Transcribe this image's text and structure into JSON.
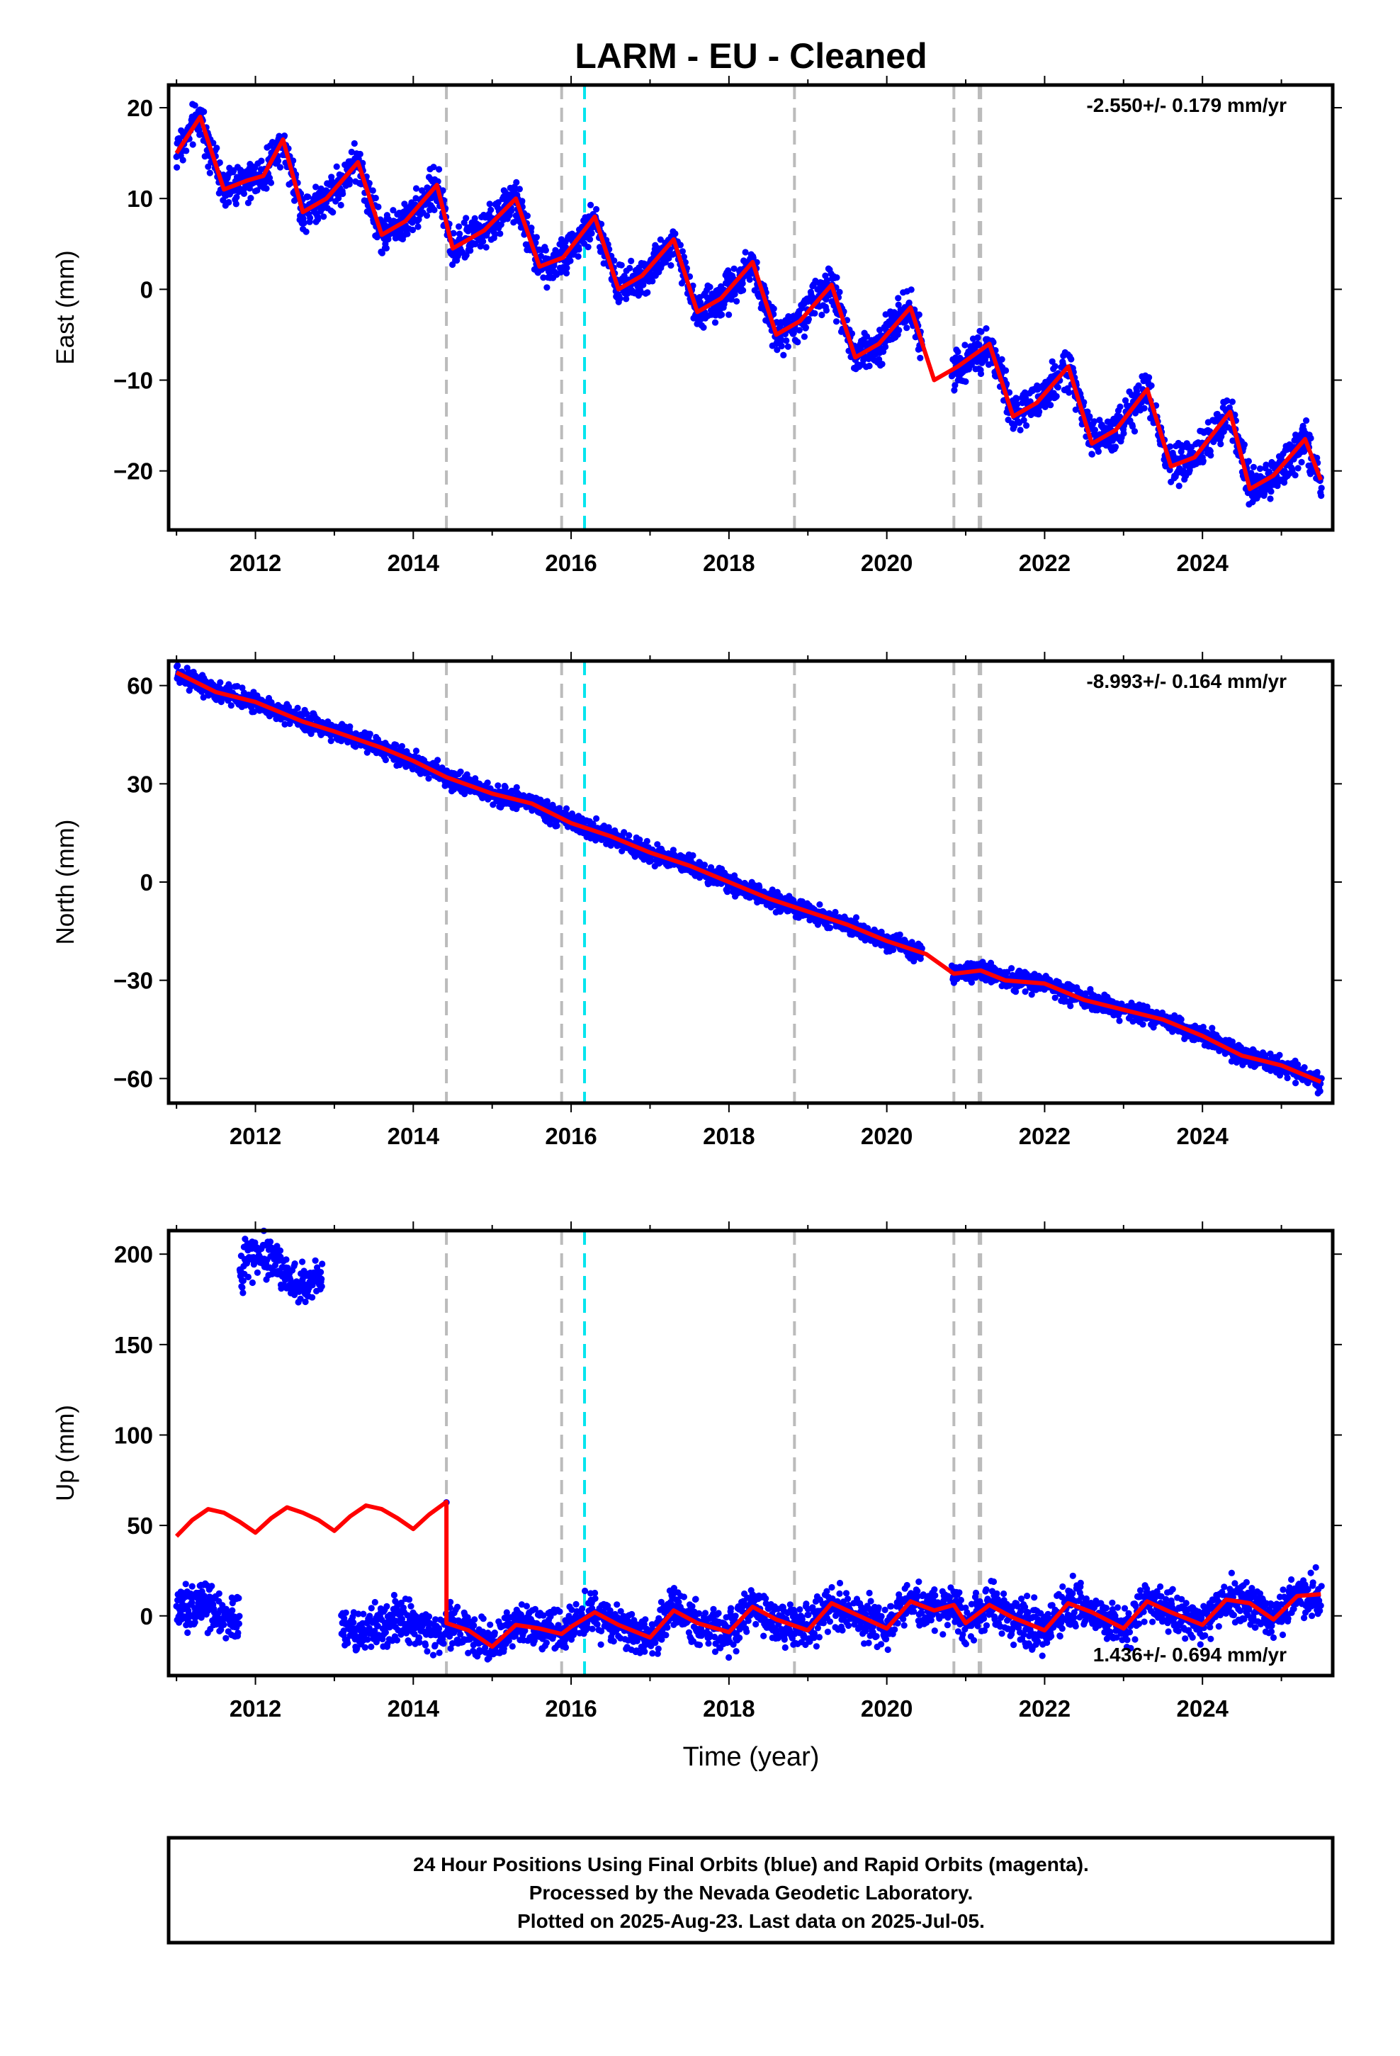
{
  "title": "LARM  - EU - Cleaned",
  "xlabel": "Time (year)",
  "footer": {
    "line1": "24 Hour Positions Using Final Orbits (blue) and Rapid Orbits (magenta).",
    "line2": "Processed by the Nevada Geodetic Laboratory.",
    "line3": "Plotted on 2025-Aug-23. Last data on 2025-Jul-05."
  },
  "colors": {
    "final_orbits": "#0000ff",
    "model": "#ff0000",
    "event_gray": "#bbbbbb",
    "event_cyan": "#00e5ee"
  },
  "chart_data": [
    {
      "type": "scatter",
      "panel": "east",
      "ylabel": "East (mm)",
      "rate_label": "-2.550+/- 0.179 mm/yr",
      "xlim": [
        2010.9,
        2025.65
      ],
      "ylim": [
        -26.5,
        22.5
      ],
      "xticks": [
        "2012",
        "2014",
        "2016",
        "2018",
        "2020",
        "2022",
        "2024"
      ],
      "yticks": [
        "−20",
        "−10",
        "0",
        "10",
        "20"
      ],
      "ytick_values": [
        -20,
        -10,
        0,
        10,
        20
      ],
      "grid": false,
      "gray_event_lines": [
        2014.42,
        2015.88,
        2018.83,
        2020.85,
        2021.17,
        2021.19
      ],
      "cyan_event_lines": [
        2016.17
      ],
      "series": [
        {
          "x": [
            2011.0,
            2011.3,
            2011.6,
            2011.9,
            2012.1,
            2012.35,
            2012.6,
            2012.9,
            2013.3,
            2013.6,
            2013.9,
            2014.3,
            2014.5,
            2014.9,
            2015.3,
            2015.6,
            2015.9,
            2016.3,
            2016.6,
            2016.9,
            2017.3,
            2017.6,
            2017.9,
            2018.3,
            2018.6,
            2018.9,
            2019.3,
            2019.6,
            2019.9,
            2020.3,
            2020.6,
            2020.9,
            2021.3,
            2021.6,
            2021.9,
            2022.3,
            2022.6,
            2022.9,
            2023.3,
            2023.6,
            2023.9,
            2024.35,
            2024.6,
            2024.9,
            2025.3,
            2025.5
          ],
          "y": [
            15.0,
            19.0,
            11.0,
            12.0,
            12.5,
            16.5,
            8.5,
            10.0,
            14.0,
            6.0,
            7.5,
            11.5,
            4.5,
            6.5,
            10.0,
            2.5,
            3.5,
            8.0,
            0.0,
            1.5,
            5.5,
            -2.5,
            -1.0,
            3.0,
            -5.0,
            -3.5,
            0.5,
            -7.5,
            -6.0,
            -2.0,
            -10.0,
            -8.5,
            -6.0,
            -14.0,
            -12.5,
            -8.5,
            -17.0,
            -15.5,
            -11.0,
            -19.5,
            -18.5,
            -13.5,
            -22.0,
            -20.5,
            -16.5,
            -21.0
          ]
        }
      ]
    },
    {
      "type": "scatter",
      "panel": "north",
      "ylabel": "North (mm)",
      "rate_label": "-8.993+/- 0.164 mm/yr",
      "xlim": [
        2010.9,
        2025.65
      ],
      "ylim": [
        -67.5,
        67.5
      ],
      "xticks": [
        "2012",
        "2014",
        "2016",
        "2018",
        "2020",
        "2022",
        "2024"
      ],
      "yticks": [
        "−60",
        "−30",
        "0",
        "30",
        "60"
      ],
      "ytick_values": [
        -60,
        -30,
        0,
        30,
        60
      ],
      "grid": false,
      "gray_event_lines": [
        2014.42,
        2015.88,
        2018.83,
        2020.85,
        2021.17,
        2021.19
      ],
      "cyan_event_lines": [
        2016.17
      ],
      "series": [
        {
          "x": [
            2011.0,
            2011.5,
            2012.0,
            2012.6,
            2013.0,
            2013.6,
            2014.0,
            2014.42,
            2015.0,
            2015.5,
            2016.0,
            2016.5,
            2017.0,
            2017.5,
            2018.0,
            2018.5,
            2019.0,
            2019.5,
            2020.0,
            2020.5,
            2020.85,
            2021.19,
            2021.5,
            2022.0,
            2022.5,
            2023.0,
            2023.5,
            2024.0,
            2024.5,
            2025.0,
            2025.5
          ],
          "y": [
            64,
            58,
            55,
            49,
            46,
            41,
            37,
            32,
            27,
            24,
            18,
            14,
            9,
            5,
            0,
            -5,
            -9,
            -13,
            -18,
            -22,
            -28,
            -27,
            -30,
            -31,
            -36,
            -39,
            -42,
            -47,
            -53,
            -56,
            -61
          ]
        }
      ]
    },
    {
      "type": "scatter",
      "panel": "up",
      "ylabel": "Up (mm)",
      "rate_label": "1.436+/- 0.694 mm/yr",
      "xlim": [
        2010.9,
        2025.65
      ],
      "ylim": [
        -33,
        213
      ],
      "xticks": [
        "2012",
        "2014",
        "2016",
        "2018",
        "2020",
        "2022",
        "2024"
      ],
      "yticks": [
        "0",
        "50",
        "100",
        "150",
        "200"
      ],
      "ytick_values": [
        0,
        50,
        100,
        150,
        200
      ],
      "grid": false,
      "gray_event_lines": [
        2014.42,
        2015.88,
        2018.83,
        2020.85,
        2021.17,
        2021.19
      ],
      "cyan_event_lines": [
        2016.17
      ],
      "series": [
        {
          "x": [
            2011.0,
            2011.2,
            2011.4,
            2011.6,
            2011.8,
            2012.0,
            2012.2,
            2012.4,
            2012.6,
            2012.8,
            2013.0,
            2013.2,
            2013.4,
            2013.6,
            2013.8,
            2014.0,
            2014.2,
            2014.42,
            2014.421,
            2014.7,
            2015.0,
            2015.3,
            2015.6,
            2015.88,
            2016.0,
            2016.3,
            2016.6,
            2017.0,
            2017.3,
            2017.6,
            2018.0,
            2018.3,
            2018.6,
            2019.0,
            2019.3,
            2019.6,
            2020.0,
            2020.3,
            2020.6,
            2020.85,
            2021.0,
            2021.3,
            2021.6,
            2022.0,
            2022.3,
            2022.6,
            2023.0,
            2023.3,
            2023.6,
            2024.0,
            2024.3,
            2024.6,
            2024.9,
            2025.2,
            2025.5
          ],
          "y": [
            44,
            53,
            59,
            57,
            52,
            46,
            54,
            60,
            57,
            53,
            47,
            55,
            61,
            59,
            54,
            48,
            56,
            63,
            -4,
            -8,
            -17,
            -5,
            -7,
            -10,
            -6,
            2,
            -5,
            -12,
            3,
            -4,
            -9,
            5,
            -2,
            -8,
            7,
            1,
            -7,
            8,
            3,
            6,
            -4,
            6,
            -1,
            -8,
            7,
            2,
            -7,
            8,
            2,
            -5,
            9,
            7,
            -2,
            11,
            12
          ]
        }
      ]
    }
  ]
}
